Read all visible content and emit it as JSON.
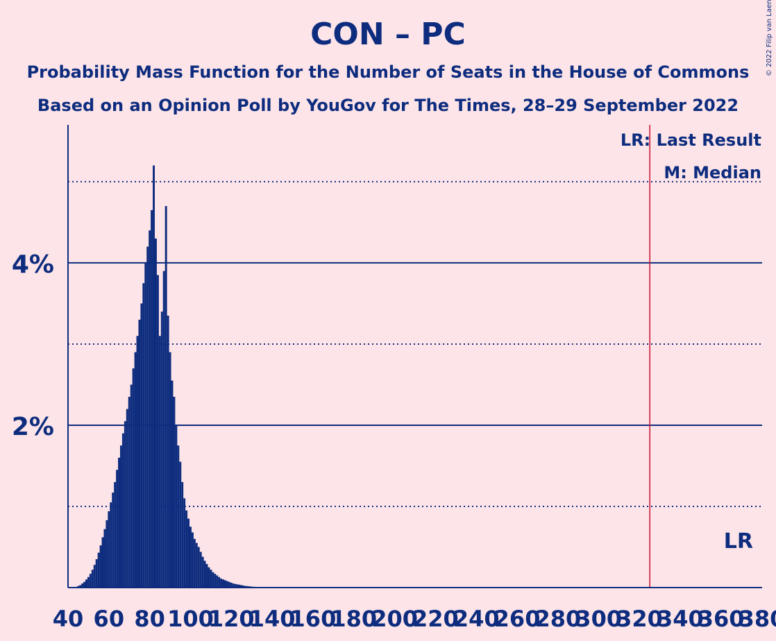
{
  "chart_data": {
    "type": "bar",
    "title": "CON – PC",
    "subtitle": "Probability Mass Function for the Number of Seats in the House of Commons",
    "subtitle2": "Based on an Opinion Poll by YouGov for The Times, 28–29 September 2022",
    "copyright": "© 2022 Filip van Laenen",
    "xlabel": "",
    "ylabel": "",
    "xlim": [
      40,
      380
    ],
    "ylim": [
      0,
      5.7
    ],
    "x_ticks": [
      "40",
      "60",
      "80",
      "100",
      "120",
      "140",
      "160",
      "180",
      "200",
      "220",
      "240",
      "260",
      "280",
      "300",
      "320",
      "340",
      "360",
      "380"
    ],
    "y_ticks_labeled": [
      "2%",
      "4%"
    ],
    "y_gridlines_solid": [
      2,
      4
    ],
    "y_gridlines_dotted": [
      1,
      3,
      5
    ],
    "last_result": 325,
    "legend": [
      "LR: Last Result",
      "M: Median"
    ],
    "lr_label": "LR",
    "bar_color": "#0d2c7e",
    "lr_line_color": "#c8102e",
    "x": [
      45,
      46,
      47,
      48,
      49,
      50,
      51,
      52,
      53,
      54,
      55,
      56,
      57,
      58,
      59,
      60,
      61,
      62,
      63,
      64,
      65,
      66,
      67,
      68,
      69,
      70,
      71,
      72,
      73,
      74,
      75,
      76,
      77,
      78,
      79,
      80,
      81,
      82,
      83,
      84,
      85,
      86,
      87,
      88,
      89,
      90,
      91,
      92,
      93,
      94,
      95,
      96,
      97,
      98,
      99,
      100,
      101,
      102,
      103,
      104,
      105,
      106,
      107,
      108,
      109,
      110,
      111,
      112,
      113,
      114,
      115,
      116,
      117,
      118,
      119,
      120,
      121,
      122,
      123,
      124,
      125,
      126,
      127,
      128,
      129,
      130,
      131,
      132,
      133,
      134,
      135
    ],
    "values": [
      0.02,
      0.03,
      0.05,
      0.07,
      0.1,
      0.13,
      0.17,
      0.22,
      0.28,
      0.35,
      0.43,
      0.52,
      0.62,
      0.72,
      0.83,
      0.94,
      1.05,
      1.17,
      1.3,
      1.45,
      1.6,
      1.75,
      1.9,
      2.05,
      2.2,
      2.35,
      2.5,
      2.7,
      2.9,
      3.1,
      3.3,
      3.5,
      3.75,
      4.0,
      4.2,
      4.4,
      4.65,
      5.2,
      4.3,
      3.85,
      3.1,
      3.4,
      3.9,
      4.7,
      3.35,
      2.9,
      2.55,
      2.35,
      2.0,
      1.75,
      1.55,
      1.3,
      1.1,
      0.95,
      0.85,
      0.75,
      0.68,
      0.6,
      0.55,
      0.5,
      0.44,
      0.38,
      0.33,
      0.29,
      0.25,
      0.22,
      0.19,
      0.17,
      0.15,
      0.13,
      0.11,
      0.1,
      0.09,
      0.08,
      0.07,
      0.06,
      0.05,
      0.045,
      0.04,
      0.035,
      0.03,
      0.025,
      0.02,
      0.018,
      0.015,
      0.012,
      0.01,
      0.008,
      0.006,
      0.005,
      0.004
    ]
  }
}
